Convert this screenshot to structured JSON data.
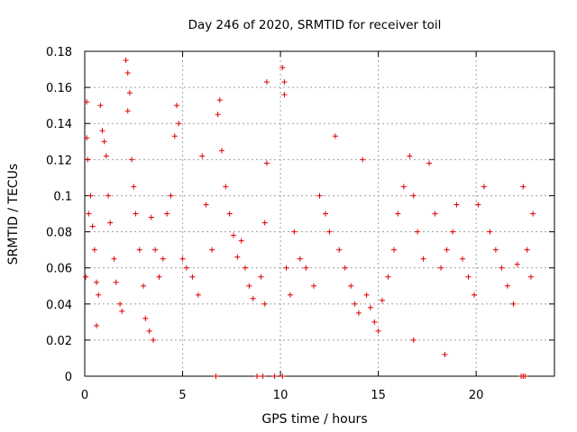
{
  "chart_data": {
    "type": "scatter",
    "title": "Day 246 of 2020, SRMTID for receiver toil",
    "xlabel": "GPS time / hours",
    "ylabel": "SRMTID / TECUs",
    "xlim": [
      0,
      24
    ],
    "ylim": [
      0,
      0.18
    ],
    "xticks": [
      0,
      5,
      10,
      15,
      20
    ],
    "xtick_labels": [
      "0",
      "5",
      "10",
      "15",
      "20"
    ],
    "yticks": [
      0,
      0.02,
      0.04,
      0.06,
      0.08,
      0.1,
      0.12,
      0.14,
      0.16,
      0.18
    ],
    "ytick_labels": [
      "0",
      "0.02",
      "0.04",
      "0.06",
      "0.08",
      "0.1",
      "0.12",
      "0.14",
      "0.16",
      "0.18"
    ],
    "grid": true,
    "marker": "plus",
    "series_color": "#e00000",
    "series": [
      {
        "name": "SRMTID",
        "points": [
          [
            0.1,
            0.152
          ],
          [
            0.1,
            0.132
          ],
          [
            0.15,
            0.12
          ],
          [
            0.2,
            0.09
          ],
          [
            0.05,
            0.055
          ],
          [
            0.3,
            0.1
          ],
          [
            0.4,
            0.083
          ],
          [
            0.5,
            0.07
          ],
          [
            0.6,
            0.052
          ],
          [
            0.7,
            0.045
          ],
          [
            0.9,
            0.136
          ],
          [
            1.0,
            0.13
          ],
          [
            1.1,
            0.122
          ],
          [
            0.8,
            0.15
          ],
          [
            1.2,
            0.1
          ],
          [
            1.3,
            0.085
          ],
          [
            1.5,
            0.065
          ],
          [
            1.6,
            0.052
          ],
          [
            1.8,
            0.04
          ],
          [
            1.9,
            0.036
          ],
          [
            2.1,
            0.175
          ],
          [
            2.2,
            0.168
          ],
          [
            2.3,
            0.157
          ],
          [
            2.2,
            0.147
          ],
          [
            2.4,
            0.12
          ],
          [
            2.5,
            0.105
          ],
          [
            2.6,
            0.09
          ],
          [
            2.8,
            0.07
          ],
          [
            3.0,
            0.05
          ],
          [
            3.1,
            0.032
          ],
          [
            3.3,
            0.025
          ],
          [
            3.4,
            0.088
          ],
          [
            3.6,
            0.07
          ],
          [
            3.8,
            0.055
          ],
          [
            4.0,
            0.065
          ],
          [
            4.2,
            0.09
          ],
          [
            4.4,
            0.1
          ],
          [
            4.6,
            0.133
          ],
          [
            4.7,
            0.15
          ],
          [
            4.8,
            0.14
          ],
          [
            5.0,
            0.065
          ],
          [
            5.2,
            0.06
          ],
          [
            5.5,
            0.055
          ],
          [
            5.8,
            0.045
          ],
          [
            6.0,
            0.122
          ],
          [
            6.2,
            0.095
          ],
          [
            6.5,
            0.07
          ],
          [
            6.8,
            0.145
          ],
          [
            6.9,
            0.153
          ],
          [
            7.0,
            0.125
          ],
          [
            7.2,
            0.105
          ],
          [
            7.4,
            0.09
          ],
          [
            7.6,
            0.078
          ],
          [
            7.8,
            0.066
          ],
          [
            8.0,
            0.075
          ],
          [
            8.2,
            0.06
          ],
          [
            8.4,
            0.05
          ],
          [
            8.6,
            0.043
          ],
          [
            9.0,
            0.055
          ],
          [
            9.2,
            0.04
          ],
          [
            9.3,
            0.163
          ],
          [
            9.3,
            0.118
          ],
          [
            9.2,
            0.085
          ],
          [
            10.1,
            0.171
          ],
          [
            10.2,
            0.163
          ],
          [
            10.2,
            0.156
          ],
          [
            10.3,
            0.06
          ],
          [
            10.5,
            0.045
          ],
          [
            10.7,
            0.08
          ],
          [
            11.0,
            0.065
          ],
          [
            11.3,
            0.06
          ],
          [
            11.7,
            0.05
          ],
          [
            12.0,
            0.1
          ],
          [
            12.3,
            0.09
          ],
          [
            12.5,
            0.08
          ],
          [
            12.8,
            0.133
          ],
          [
            13.0,
            0.07
          ],
          [
            13.3,
            0.06
          ],
          [
            13.6,
            0.05
          ],
          [
            13.8,
            0.04
          ],
          [
            14.0,
            0.035
          ],
          [
            14.2,
            0.12
          ],
          [
            14.4,
            0.045
          ],
          [
            14.6,
            0.038
          ],
          [
            14.8,
            0.03
          ],
          [
            15.0,
            0.025
          ],
          [
            15.2,
            0.042
          ],
          [
            15.5,
            0.055
          ],
          [
            15.8,
            0.07
          ],
          [
            16.0,
            0.09
          ],
          [
            16.3,
            0.105
          ],
          [
            16.6,
            0.122
          ],
          [
            16.8,
            0.1
          ],
          [
            17.0,
            0.08
          ],
          [
            17.3,
            0.065
          ],
          [
            17.6,
            0.118
          ],
          [
            17.9,
            0.09
          ],
          [
            18.2,
            0.06
          ],
          [
            18.5,
            0.07
          ],
          [
            18.8,
            0.08
          ],
          [
            19.0,
            0.095
          ],
          [
            19.3,
            0.065
          ],
          [
            19.6,
            0.055
          ],
          [
            19.9,
            0.045
          ],
          [
            20.1,
            0.095
          ],
          [
            20.4,
            0.105
          ],
          [
            20.7,
            0.08
          ],
          [
            21.0,
            0.07
          ],
          [
            21.3,
            0.06
          ],
          [
            21.6,
            0.05
          ],
          [
            21.9,
            0.04
          ],
          [
            22.1,
            0.062
          ],
          [
            22.4,
            0.105
          ],
          [
            22.6,
            0.07
          ],
          [
            22.8,
            0.055
          ],
          [
            22.9,
            0.09
          ],
          [
            0.6,
            0.028
          ],
          [
            3.5,
            0.02
          ],
          [
            18.4,
            0.012
          ],
          [
            16.8,
            0.02
          ],
          [
            6.7,
            0
          ],
          [
            8.8,
            0
          ],
          [
            9.1,
            0
          ],
          [
            9.7,
            0
          ],
          [
            10.1,
            0
          ],
          [
            22.3,
            0
          ],
          [
            22.4,
            0
          ],
          [
            22.5,
            0
          ]
        ]
      }
    ]
  }
}
